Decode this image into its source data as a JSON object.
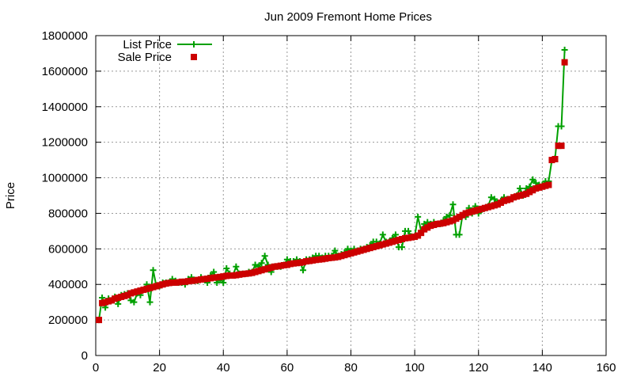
{
  "chart_data": {
    "type": "line",
    "title": "Jun 2009 Fremont Home Prices",
    "xlabel": "",
    "ylabel": "Price",
    "xlim": [
      0,
      160
    ],
    "ylim": [
      0,
      1800000
    ],
    "x_ticks": [
      0,
      20,
      40,
      60,
      80,
      100,
      120,
      140,
      160
    ],
    "y_ticks": [
      0,
      200000,
      400000,
      600000,
      800000,
      1000000,
      1200000,
      1400000,
      1600000,
      1800000
    ],
    "grid": true,
    "legend_position": "top-left",
    "series": [
      {
        "name": "List Price",
        "style": "linespoints",
        "marker": "plus",
        "color": "#00a000",
        "x": [
          1,
          2,
          3,
          4,
          5,
          6,
          7,
          8,
          9,
          10,
          11,
          12,
          13,
          14,
          15,
          16,
          17,
          18,
          19,
          20,
          21,
          22,
          23,
          24,
          25,
          26,
          27,
          28,
          29,
          30,
          31,
          32,
          33,
          34,
          35,
          36,
          37,
          38,
          39,
          40,
          41,
          42,
          43,
          44,
          45,
          46,
          47,
          48,
          49,
          50,
          51,
          52,
          53,
          54,
          55,
          56,
          57,
          58,
          59,
          60,
          61,
          62,
          63,
          64,
          65,
          66,
          67,
          68,
          69,
          70,
          71,
          72,
          73,
          74,
          75,
          76,
          77,
          78,
          79,
          80,
          81,
          82,
          83,
          84,
          85,
          86,
          87,
          88,
          89,
          90,
          91,
          92,
          93,
          94,
          95,
          96,
          97,
          98,
          99,
          100,
          101,
          102,
          103,
          104,
          105,
          106,
          107,
          108,
          109,
          110,
          111,
          112,
          113,
          114,
          115,
          116,
          117,
          118,
          119,
          120,
          121,
          122,
          123,
          124,
          125,
          126,
          127,
          128,
          129,
          130,
          131,
          132,
          133,
          134,
          135,
          136,
          137,
          138,
          139,
          140,
          141,
          142,
          143,
          144,
          145,
          146,
          147
        ],
        "values": [
          200000,
          325000,
          270000,
          320000,
          310000,
          330000,
          290000,
          340000,
          345000,
          350000,
          310000,
          300000,
          350000,
          340000,
          370000,
          400000,
          300000,
          480000,
          390000,
          390000,
          410000,
          410000,
          410000,
          430000,
          420000,
          410000,
          410000,
          400000,
          430000,
          440000,
          420000,
          420000,
          440000,
          430000,
          410000,
          450000,
          470000,
          410000,
          430000,
          410000,
          490000,
          460000,
          450000,
          500000,
          460000,
          460000,
          460000,
          470000,
          470000,
          510000,
          500000,
          520000,
          560000,
          510000,
          470000,
          500000,
          500000,
          500000,
          510000,
          540000,
          530000,
          530000,
          540000,
          530000,
          480000,
          540000,
          540000,
          550000,
          560000,
          560000,
          550000,
          560000,
          560000,
          560000,
          590000,
          560000,
          570000,
          580000,
          600000,
          590000,
          600000,
          590000,
          600000,
          600000,
          610000,
          620000,
          640000,
          640000,
          630000,
          680000,
          640000,
          640000,
          660000,
          680000,
          610000,
          610000,
          700000,
          700000,
          670000,
          670000,
          780000,
          700000,
          740000,
          750000,
          740000,
          750000,
          740000,
          740000,
          760000,
          780000,
          790000,
          850000,
          680000,
          680000,
          790000,
          780000,
          830000,
          800000,
          840000,
          800000,
          820000,
          830000,
          840000,
          890000,
          880000,
          860000,
          870000,
          890000,
          880000,
          880000,
          890000,
          900000,
          940000,
          900000,
          940000,
          950000,
          990000,
          970000,
          960000,
          960000,
          980000,
          980000,
          1100000,
          1110000,
          1290000,
          1290000,
          1720000
        ]
      },
      {
        "name": "Sale Price",
        "style": "points",
        "marker": "square",
        "color": "#cc0000",
        "x": [
          1,
          2,
          3,
          4,
          5,
          6,
          7,
          8,
          9,
          10,
          11,
          12,
          13,
          14,
          15,
          16,
          17,
          18,
          19,
          20,
          21,
          22,
          23,
          24,
          25,
          26,
          27,
          28,
          29,
          30,
          31,
          32,
          33,
          34,
          35,
          36,
          37,
          38,
          39,
          40,
          41,
          42,
          43,
          44,
          45,
          46,
          47,
          48,
          49,
          50,
          51,
          52,
          53,
          54,
          55,
          56,
          57,
          58,
          59,
          60,
          61,
          62,
          63,
          64,
          65,
          66,
          67,
          68,
          69,
          70,
          71,
          72,
          73,
          74,
          75,
          76,
          77,
          78,
          79,
          80,
          81,
          82,
          83,
          84,
          85,
          86,
          87,
          88,
          89,
          90,
          91,
          92,
          93,
          94,
          95,
          96,
          97,
          98,
          99,
          100,
          101,
          102,
          103,
          104,
          105,
          106,
          107,
          108,
          109,
          110,
          111,
          112,
          113,
          114,
          115,
          116,
          117,
          118,
          119,
          120,
          121,
          122,
          123,
          124,
          125,
          126,
          127,
          128,
          129,
          130,
          131,
          132,
          133,
          134,
          135,
          136,
          137,
          138,
          139,
          140,
          141,
          142,
          143,
          144,
          145,
          146,
          147
        ],
        "values": [
          200000,
          295000,
          300000,
          305000,
          310000,
          320000,
          325000,
          330000,
          335000,
          340000,
          350000,
          355000,
          360000,
          365000,
          370000,
          375000,
          380000,
          385000,
          390000,
          395000,
          400000,
          405000,
          408000,
          410000,
          410000,
          412000,
          415000,
          415000,
          418000,
          420000,
          422000,
          425000,
          428000,
          430000,
          432000,
          435000,
          438000,
          440000,
          442000,
          445000,
          448000,
          450000,
          450000,
          452000,
          455000,
          458000,
          460000,
          462000,
          465000,
          470000,
          475000,
          480000,
          485000,
          490000,
          495000,
          500000,
          502000,
          505000,
          508000,
          510000,
          515000,
          518000,
          520000,
          522000,
          525000,
          530000,
          532000,
          535000,
          538000,
          540000,
          542000,
          545000,
          548000,
          550000,
          552000,
          555000,
          560000,
          565000,
          570000,
          575000,
          580000,
          585000,
          590000,
          595000,
          600000,
          605000,
          610000,
          615000,
          620000,
          625000,
          630000,
          635000,
          640000,
          645000,
          650000,
          655000,
          660000,
          662000,
          665000,
          668000,
          675000,
          690000,
          710000,
          720000,
          730000,
          735000,
          740000,
          742000,
          745000,
          750000,
          755000,
          760000,
          770000,
          780000,
          790000,
          800000,
          805000,
          810000,
          815000,
          820000,
          825000,
          830000,
          835000,
          840000,
          845000,
          850000,
          860000,
          870000,
          875000,
          880000,
          890000,
          895000,
          900000,
          905000,
          910000,
          920000,
          930000,
          940000,
          945000,
          950000,
          955000,
          960000,
          1100000,
          1105000,
          1180000,
          1180000,
          1650000
        ]
      }
    ]
  }
}
